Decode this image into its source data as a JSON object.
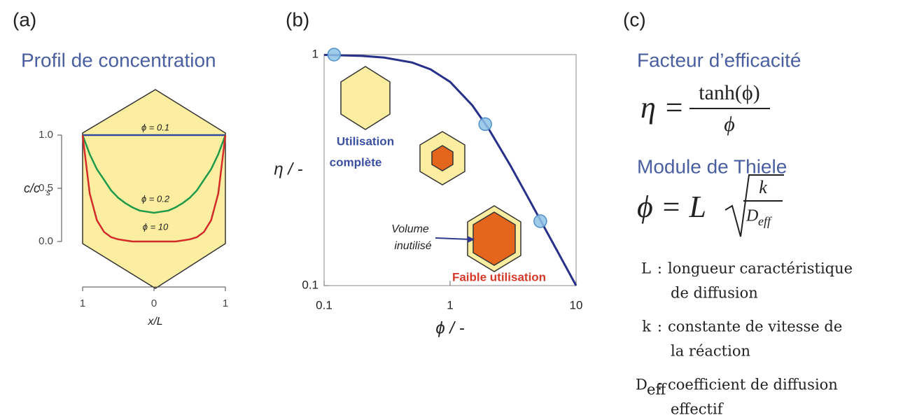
{
  "panels": [
    "(a)",
    "(b)",
    "(c)"
  ],
  "chart_data": [
    {
      "type": "line",
      "title": "Profil de concentration",
      "xlabel": "x/L",
      "ylabel": "c/c",
      "ylabel_sub": "s",
      "x": [
        -1,
        -0.9,
        -0.8,
        -0.7,
        -0.6,
        -0.5,
        -0.4,
        -0.3,
        -0.2,
        -0.1,
        0,
        0.1,
        0.2,
        0.3,
        0.4,
        0.5,
        0.6,
        0.7,
        0.8,
        0.9,
        1
      ],
      "xlim": [
        -1,
        1
      ],
      "xticks": [
        {
          "value": -1,
          "label": "1"
        },
        0,
        1
      ],
      "ylim": [
        0,
        1
      ],
      "yticks": [
        {
          "value": 0,
          "label": "0.0"
        },
        {
          "value": 0.5,
          "label": "0.5"
        },
        {
          "value": 1,
          "label": "1.0"
        }
      ],
      "series": [
        {
          "name": "ϕ = 0.1",
          "color": "#2e4a9e",
          "values": [
            1,
            1,
            1,
            1,
            1,
            1,
            1,
            1,
            1,
            1,
            1,
            1,
            1,
            1,
            1,
            1,
            1,
            1,
            1,
            1,
            1
          ]
        },
        {
          "name": "ϕ = 0.2",
          "color": "#1f9a4a",
          "values": [
            1,
            0.82,
            0.68,
            0.58,
            0.48,
            0.41,
            0.36,
            0.32,
            0.29,
            0.28,
            0.27,
            0.28,
            0.29,
            0.32,
            0.36,
            0.41,
            0.48,
            0.58,
            0.68,
            0.82,
            1
          ]
        },
        {
          "name": "ϕ = 10",
          "color": "#d42a2a",
          "values": [
            1,
            0.45,
            0.2,
            0.09,
            0.04,
            0.02,
            0.01,
            0,
            0,
            0,
            0,
            0,
            0,
            0,
            0.01,
            0.02,
            0.04,
            0.09,
            0.2,
            0.45,
            1
          ]
        }
      ]
    },
    {
      "type": "line",
      "xlabel": "ϕ / -",
      "ylabel": "η / -",
      "xscale": "log",
      "yscale": "log",
      "xlim": [
        0.1,
        10
      ],
      "xticks": [
        0.1,
        1,
        10
      ],
      "ylim": [
        0.1,
        1
      ],
      "yticks": [
        0.1,
        1
      ],
      "series": [
        {
          "style": "line",
          "color": "#27318a",
          "x": [
            0.1,
            0.2,
            0.3,
            0.5,
            0.7,
            1,
            1.5,
            2,
            3,
            4,
            5,
            7,
            10
          ],
          "values": [
            0.997,
            0.987,
            0.971,
            0.924,
            0.863,
            0.762,
            0.603,
            0.482,
            0.332,
            0.25,
            0.2,
            0.143,
            0.1
          ]
        },
        {
          "style": "markers",
          "color": "#8fc3e8",
          "x": [
            0.12,
            1.9,
            5.2
          ],
          "values": [
            1,
            0.5,
            0.19
          ]
        }
      ],
      "annotations": {
        "full": [
          "Utilisation",
          "complète"
        ],
        "unused": [
          "Volume",
          "inutilisé"
        ],
        "low": "Faible utilisation"
      }
    }
  ],
  "panel_c": {
    "title_eta": "Facteur d’efficacité",
    "eq_eta": {
      "lhs": "η =",
      "num": "tanh(ϕ)",
      "den": "ϕ"
    },
    "title_phi": "Module de Thiele",
    "eq_phi": {
      "lhs": "ϕ = L",
      "num": "k",
      "den": "D",
      "den_sub": "eff"
    },
    "definitions": [
      {
        "symbol": "L",
        "sep": ":",
        "lines": [
          "longueur caractéristique",
          "de diffusion"
        ]
      },
      {
        "symbol": "k",
        "sep": ":",
        "lines": [
          "constante de vitesse de",
          "la réaction"
        ]
      },
      {
        "symbol": "D",
        "symbol_sub": "eff",
        "sep": ":",
        "lines": [
          "coefficient de diffusion",
          "effectif"
        ]
      }
    ]
  }
}
